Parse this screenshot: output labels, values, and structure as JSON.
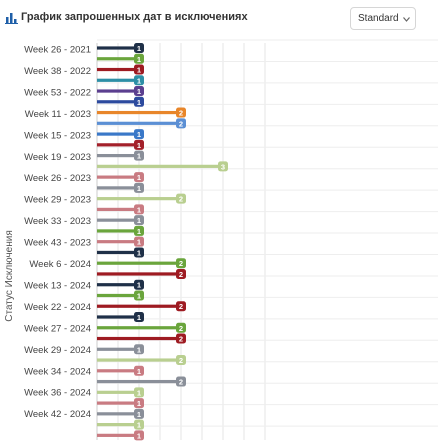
{
  "header": {
    "title": "График запрошенных дат в исключениях",
    "title_icon": "bar-chart-icon",
    "select_value": "Standard",
    "select_icon": "chevron-down-icon"
  },
  "chart_data": {
    "type": "bar",
    "orientation": "horizontal",
    "title": "График запрошенных дат в исключениях",
    "ylabel": "Статус Исключения",
    "xlim": [
      0,
      4
    ],
    "grid": true,
    "data_labels": true,
    "y_tick_labels": [
      "Week 26 - 2021",
      "Week 38 - 2022",
      "Week 53 - 2022",
      "Week 11 - 2023",
      "Week 15 - 2023",
      "Week 19 - 2023",
      "Week 26 - 2023",
      "Week 29 - 2023",
      "Week 33 - 2023",
      "Week 43 - 2023",
      "Week 6 - 2024",
      "Week 13 - 2024",
      "Week 22 - 2024",
      "Week 27 - 2024",
      "Week 29 - 2024",
      "Week 34 - 2024",
      "Week 36 - 2024",
      "Week 42 - 2024"
    ],
    "bars": [
      {
        "value": 1,
        "color": "#1f3048"
      },
      {
        "value": 1,
        "color": "#6aa53c"
      },
      {
        "value": 1,
        "color": "#9e1b22"
      },
      {
        "value": 1,
        "color": "#2d8fa6"
      },
      {
        "value": 1,
        "color": "#5b3f8f"
      },
      {
        "value": 1,
        "color": "#2c4a9e"
      },
      {
        "value": 2,
        "color": "#e8862a"
      },
      {
        "value": 2,
        "color": "#5b8fd4"
      },
      {
        "value": 1,
        "color": "#3a78c8"
      },
      {
        "value": 1,
        "color": "#a3202a"
      },
      {
        "value": 1,
        "color": "#8a8f99"
      },
      {
        "value": 3,
        "color": "#b9cf90"
      },
      {
        "value": 1,
        "color": "#c97b82"
      },
      {
        "value": 1,
        "color": "#8a8f99"
      },
      {
        "value": 2,
        "color": "#b9cf90"
      },
      {
        "value": 1,
        "color": "#c97b82"
      },
      {
        "value": 1,
        "color": "#8a8f99"
      },
      {
        "value": 1,
        "color": "#6aa53c"
      },
      {
        "value": 1,
        "color": "#c97b82"
      },
      {
        "value": 1,
        "color": "#1f3048"
      },
      {
        "value": 2,
        "color": "#6aa53c"
      },
      {
        "value": 2,
        "color": "#9e1b22"
      },
      {
        "value": 1,
        "color": "#1f3048"
      },
      {
        "value": 1,
        "color": "#6aa53c"
      },
      {
        "value": 2,
        "color": "#9e1b22"
      },
      {
        "value": 1,
        "color": "#1f3048"
      },
      {
        "value": 2,
        "color": "#6aa53c"
      },
      {
        "value": 2,
        "color": "#9e1b22"
      },
      {
        "value": 1,
        "color": "#8a8f99"
      },
      {
        "value": 2,
        "color": "#b9cf90"
      },
      {
        "value": 1,
        "color": "#c97b82"
      },
      {
        "value": 2,
        "color": "#8a8f99"
      },
      {
        "value": 1,
        "color": "#b9cf90"
      },
      {
        "value": 1,
        "color": "#c97b82"
      },
      {
        "value": 1,
        "color": "#8a8f99"
      },
      {
        "value": 1,
        "color": "#b9cf90"
      },
      {
        "value": 1,
        "color": "#c97b82"
      }
    ]
  }
}
